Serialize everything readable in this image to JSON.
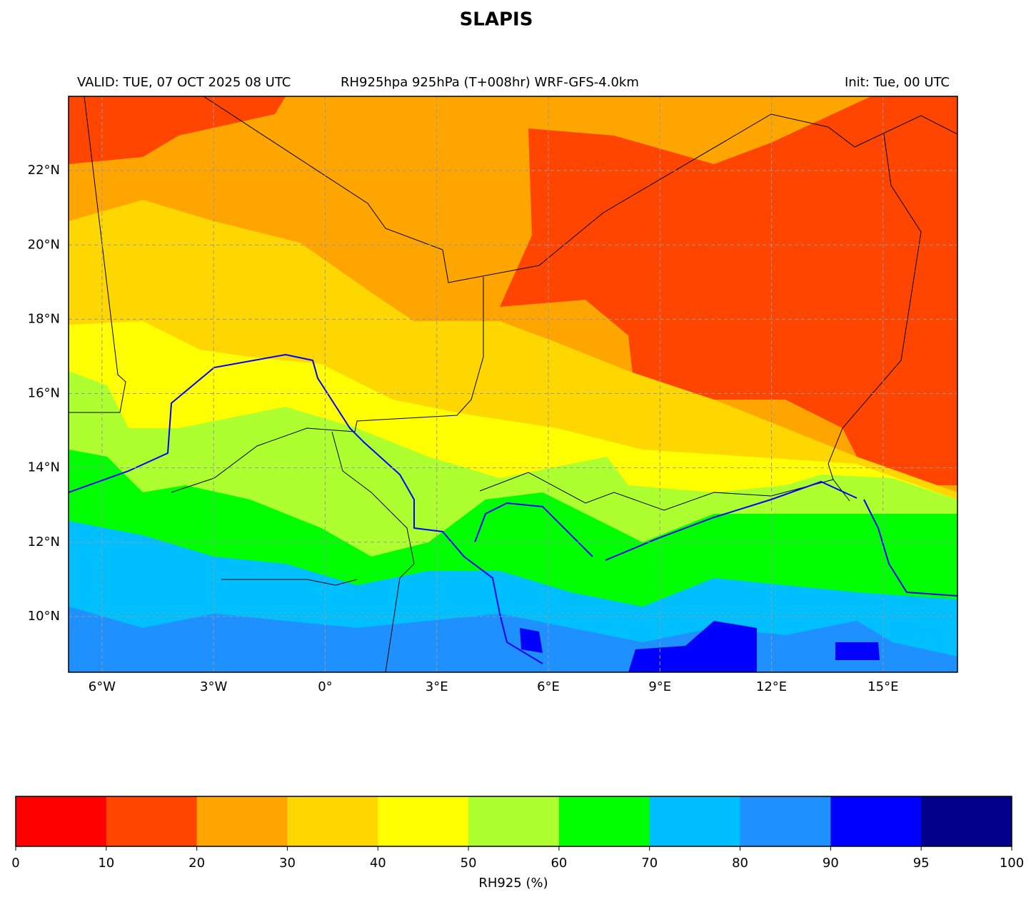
{
  "title": "SLAPIS",
  "header": {
    "left": "VALID: TUE, 07 OCT 2025 08 UTC",
    "center": "RH925hpa 925hPa (T+008hr) WRF-GFS-4.0km",
    "right": "Init: Tue, 00 UTC"
  },
  "map": {
    "xlim": [
      -6.9,
      17
    ],
    "ylim": [
      8.5,
      24
    ],
    "grid": true,
    "xticks": [
      {
        "value": -6,
        "label": "6°W"
      },
      {
        "value": -3,
        "label": "3°W"
      },
      {
        "value": 0,
        "label": "0°"
      },
      {
        "value": 3,
        "label": "3°E"
      },
      {
        "value": 6,
        "label": "6°E"
      },
      {
        "value": 9,
        "label": "9°E"
      },
      {
        "value": 12,
        "label": "12°E"
      },
      {
        "value": 15,
        "label": "15°E"
      }
    ],
    "yticks": [
      {
        "value": 10,
        "label": "10°N"
      },
      {
        "value": 12,
        "label": "12°N"
      },
      {
        "value": 14,
        "label": "14°N"
      },
      {
        "value": 16,
        "label": "16°N"
      },
      {
        "value": 18,
        "label": "18°N"
      },
      {
        "value": 20,
        "label": "20°N"
      },
      {
        "value": 22,
        "label": "22°N"
      }
    ]
  },
  "colorbar": {
    "label": "RH925 (%)",
    "boundaries": [
      0,
      10,
      20,
      30,
      40,
      50,
      60,
      70,
      80,
      90,
      95,
      100
    ],
    "colors": [
      "#ff0000",
      "#ff4500",
      "#ffa500",
      "#ffd700",
      "#ffff00",
      "#adff2f",
      "#00ff00",
      "#00bfff",
      "#1e90ff",
      "#0000ff",
      "#00008b"
    ]
  }
}
